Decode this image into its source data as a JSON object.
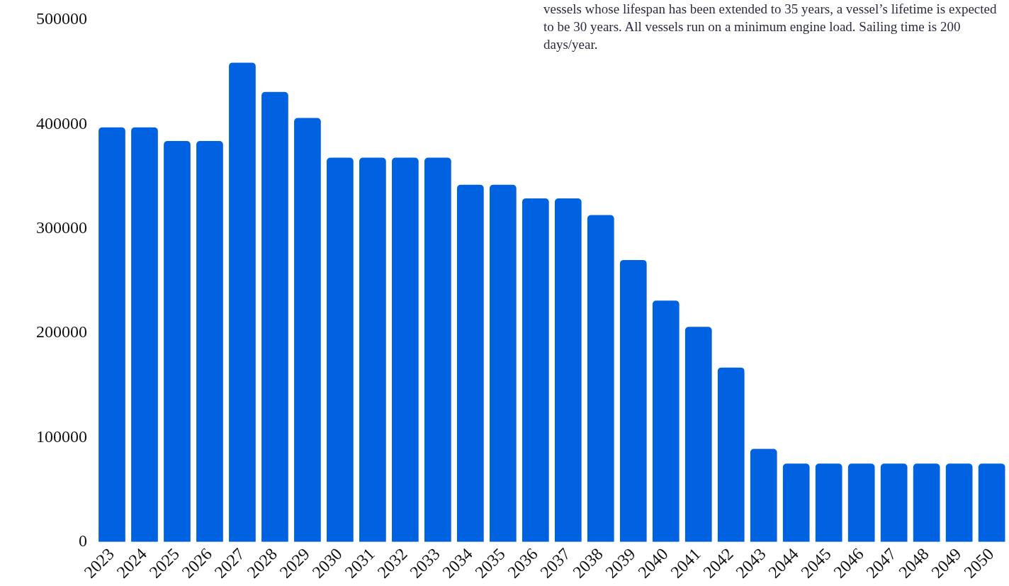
{
  "chart_data": {
    "type": "bar",
    "categories": [
      "2023",
      "2024",
      "2025",
      "2026",
      "2027",
      "2028",
      "2029",
      "2030",
      "2031",
      "2032",
      "2033",
      "2034",
      "2035",
      "2036",
      "2037",
      "2038",
      "2039",
      "2040",
      "2041",
      "2042",
      "2043",
      "2044",
      "2045",
      "2046",
      "2047",
      "2048",
      "2049",
      "2050"
    ],
    "values": [
      397000,
      397000,
      384000,
      384000,
      459000,
      431000,
      406000,
      368000,
      368000,
      368000,
      368000,
      342000,
      342000,
      329000,
      329000,
      313000,
      270000,
      231000,
      206000,
      167000,
      89000,
      75000,
      75000,
      75000,
      75000,
      75000,
      75000,
      75000
    ],
    "color": "#0062e0",
    "ylim": [
      0,
      500000
    ],
    "yticks": [
      0,
      100000,
      200000,
      300000,
      400000,
      500000
    ],
    "grid": false,
    "legend": false,
    "annotations": [
      "vessels whose lifespan has been extended to 35 years, a vessel’s lifetime is expected to be 30 years. All vessels run on a minimum engine load. Sailing time is 200 days/year."
    ]
  }
}
